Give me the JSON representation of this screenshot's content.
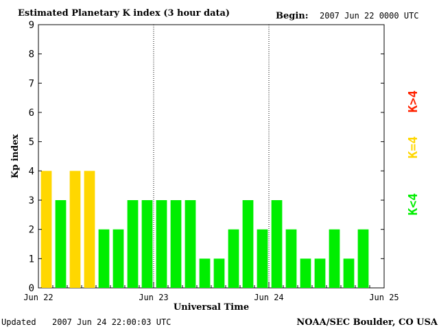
{
  "header": {
    "title": "Estimated Planetary K index (3 hour data)",
    "begin_label": "Begin:",
    "begin_value": "2007 Jun 22 0000 UTC"
  },
  "footer": {
    "updated_label": "Updated",
    "updated_value": "2007 Jun 24 22:00:03 UTC",
    "source": "NOAA/SEC Boulder, CO USA"
  },
  "legend": {
    "low": "K<4",
    "mid": "K=4",
    "high": "K>4"
  },
  "colors": {
    "low": "#00ee00",
    "mid": "#ffd700",
    "high": "#ff2200"
  },
  "chart_data": {
    "type": "bar",
    "title": "Estimated Planetary K index (3 hour data)",
    "xlabel": "Universal Time",
    "ylabel": "Kp index",
    "ylim": [
      0,
      9
    ],
    "yticks": [
      "0",
      "1",
      "2",
      "3",
      "4",
      "5",
      "6",
      "7",
      "8",
      "9"
    ],
    "xticks": [
      "Jun 22",
      "Jun 23",
      "Jun 24",
      "Jun 25"
    ],
    "grid": false,
    "day_separators": [
      "Jun 23",
      "Jun 24"
    ],
    "values": [
      4,
      3,
      4,
      4,
      2,
      2,
      3,
      3,
      3,
      3,
      3,
      1,
      1,
      2,
      3,
      2,
      3,
      2,
      1,
      1,
      2,
      1,
      2
    ]
  }
}
